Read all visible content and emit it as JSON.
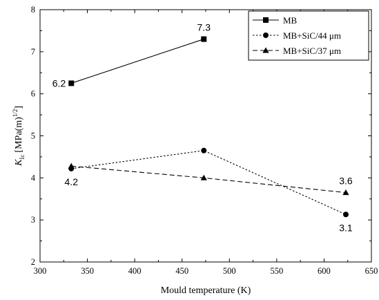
{
  "chart_data": {
    "type": "line",
    "xlabel": "Mould temperature (K)",
    "ylabel_main": "K",
    "ylabel_sub": "Ic",
    "ylabel_unit": "[MPa(m)",
    "ylabel_exp": "1/2",
    "ylabel_close": "]",
    "xlim": [
      300,
      650
    ],
    "ylim": [
      2,
      8
    ],
    "xticks": [
      300,
      350,
      400,
      450,
      500,
      550,
      600,
      650
    ],
    "yticks": [
      2,
      3,
      4,
      5,
      6,
      7,
      8
    ],
    "grid": false,
    "legend_position": "top-right",
    "series": [
      {
        "name": "MB",
        "x": [
          333,
          473
        ],
        "y": [
          6.25,
          7.3
        ],
        "marker": "square",
        "dash": "solid"
      },
      {
        "name": "MB+SiC/44 μm",
        "x": [
          333,
          473,
          623
        ],
        "y": [
          4.22,
          4.65,
          3.13
        ],
        "marker": "circle",
        "dash": "dotted"
      },
      {
        "name": "MB+SiC/37 μm",
        "x": [
          333,
          473,
          623
        ],
        "y": [
          4.28,
          4.0,
          3.65
        ],
        "marker": "triangle",
        "dash": "dashed"
      }
    ],
    "annotations": [
      {
        "text": "6.2",
        "x": 333,
        "y": 6.25,
        "anchor": "left"
      },
      {
        "text": "7.3",
        "x": 473,
        "y": 7.3,
        "anchor": "above"
      },
      {
        "text": "4.2",
        "x": 333,
        "y": 4.22,
        "anchor": "below"
      },
      {
        "text": "3.6",
        "x": 623,
        "y": 3.65,
        "anchor": "above"
      },
      {
        "text": "3.1",
        "x": 623,
        "y": 3.13,
        "anchor": "below"
      }
    ]
  }
}
